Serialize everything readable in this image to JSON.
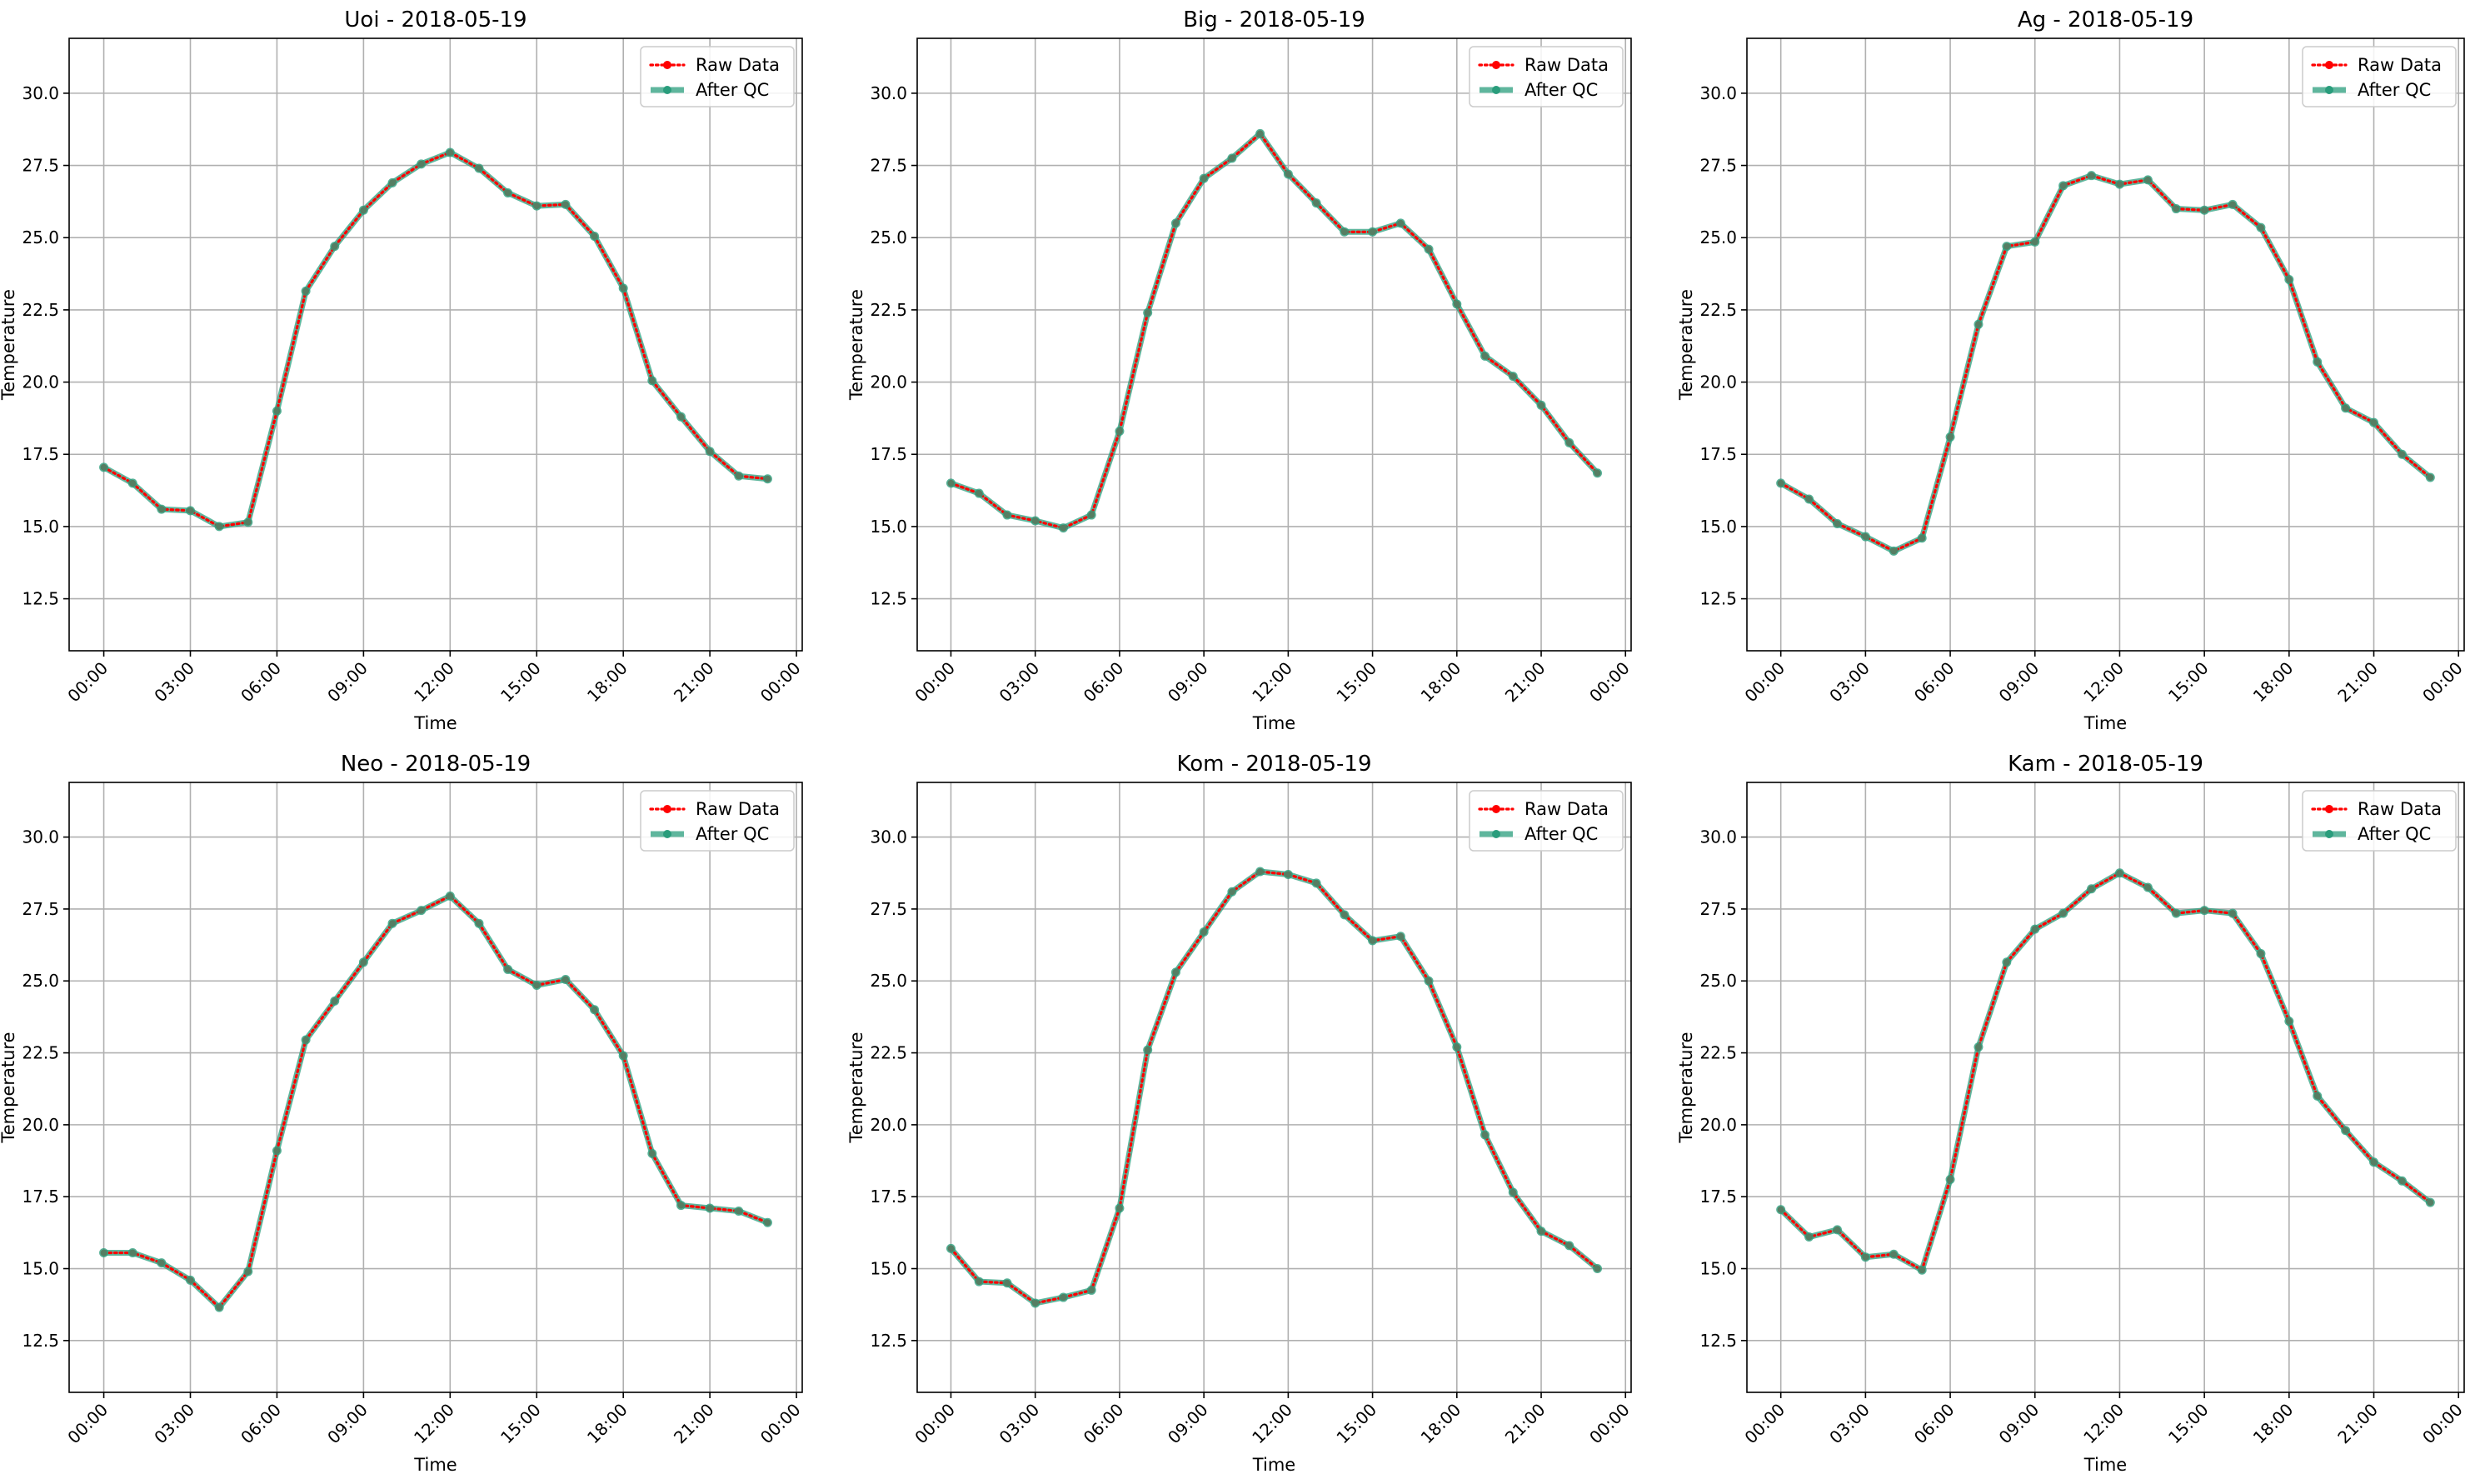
{
  "chart_data": [
    {
      "type": "line",
      "title": "Uoi - 2018-05-19",
      "xlabel": "Time",
      "ylabel": "Temperature",
      "x_ticks": [
        "00:00",
        "03:00",
        "06:00",
        "09:00",
        "12:00",
        "15:00",
        "18:00",
        "21:00",
        "00:00"
      ],
      "y_ticks": [
        "12.5",
        "15.0",
        "17.5",
        "20.0",
        "22.5",
        "25.0",
        "27.5",
        "30.0"
      ],
      "xlim": [
        "2018-05-18 22:48",
        "2018-05-20 00:12"
      ],
      "ylim": [
        10.7,
        31.9
      ],
      "grid": true,
      "legend": "upper right",
      "series": [
        {
          "name": "Raw Data",
          "color": "#ff0000",
          "style": "dotted-markers",
          "x": [
            "00:00",
            "01:00",
            "02:00",
            "03:00",
            "04:00",
            "05:00",
            "06:00",
            "07:00",
            "08:00",
            "09:00",
            "10:00",
            "11:00",
            "12:00",
            "13:00",
            "14:00",
            "15:00",
            "16:00",
            "17:00",
            "18:00",
            "19:00",
            "20:00",
            "21:00",
            "22:00",
            "23:00"
          ],
          "values": [
            17.05,
            16.5,
            15.6,
            15.55,
            15.0,
            15.15,
            19.0,
            23.15,
            24.7,
            25.95,
            26.9,
            27.55,
            27.95,
            27.4,
            26.55,
            26.1,
            26.15,
            25.05,
            23.25,
            20.05,
            18.8,
            17.6,
            16.75,
            16.65
          ]
        },
        {
          "name": "After QC",
          "color": "#2a9d7c",
          "style": "solid-markers",
          "x": [
            "00:00",
            "01:00",
            "02:00",
            "03:00",
            "04:00",
            "05:00",
            "06:00",
            "07:00",
            "08:00",
            "09:00",
            "10:00",
            "11:00",
            "12:00",
            "13:00",
            "14:00",
            "15:00",
            "16:00",
            "17:00",
            "18:00",
            "19:00",
            "20:00",
            "21:00",
            "22:00",
            "23:00"
          ],
          "values": [
            17.05,
            16.5,
            15.6,
            15.55,
            15.0,
            15.15,
            19.0,
            23.15,
            24.7,
            25.95,
            26.9,
            27.55,
            27.95,
            27.4,
            26.55,
            26.1,
            26.15,
            25.05,
            23.25,
            20.05,
            18.8,
            17.6,
            16.75,
            16.65
          ]
        }
      ]
    },
    {
      "type": "line",
      "title": "Big - 2018-05-19",
      "xlabel": "Time",
      "ylabel": "Temperature",
      "x_ticks": [
        "00:00",
        "03:00",
        "06:00",
        "09:00",
        "12:00",
        "15:00",
        "18:00",
        "21:00",
        "00:00"
      ],
      "y_ticks": [
        "12.5",
        "15.0",
        "17.5",
        "20.0",
        "22.5",
        "25.0",
        "27.5",
        "30.0"
      ],
      "xlim": [
        "2018-05-18 22:48",
        "2018-05-20 00:12"
      ],
      "ylim": [
        10.7,
        31.9
      ],
      "grid": true,
      "legend": "upper right",
      "series": [
        {
          "name": "Raw Data",
          "color": "#ff0000",
          "style": "dotted-markers",
          "x": [
            "00:00",
            "01:00",
            "02:00",
            "03:00",
            "04:00",
            "05:00",
            "06:00",
            "07:00",
            "08:00",
            "09:00",
            "10:00",
            "11:00",
            "12:00",
            "13:00",
            "14:00",
            "15:00",
            "16:00",
            "17:00",
            "18:00",
            "19:00",
            "20:00",
            "21:00",
            "22:00",
            "23:00"
          ],
          "values": [
            16.5,
            16.15,
            15.4,
            15.2,
            14.95,
            15.4,
            18.3,
            22.4,
            25.5,
            27.05,
            27.75,
            28.6,
            27.2,
            26.2,
            25.2,
            25.2,
            25.5,
            24.6,
            22.7,
            20.9,
            20.2,
            19.2,
            17.9,
            16.85
          ]
        },
        {
          "name": "After QC",
          "color": "#2a9d7c",
          "style": "solid-markers",
          "x": [
            "00:00",
            "01:00",
            "02:00",
            "03:00",
            "04:00",
            "05:00",
            "06:00",
            "07:00",
            "08:00",
            "09:00",
            "10:00",
            "11:00",
            "12:00",
            "13:00",
            "14:00",
            "15:00",
            "16:00",
            "17:00",
            "18:00",
            "19:00",
            "20:00",
            "21:00",
            "22:00",
            "23:00"
          ],
          "values": [
            16.5,
            16.15,
            15.4,
            15.2,
            14.95,
            15.4,
            18.3,
            22.4,
            25.5,
            27.05,
            27.75,
            28.6,
            27.2,
            26.2,
            25.2,
            25.2,
            25.5,
            24.6,
            22.7,
            20.9,
            20.2,
            19.2,
            17.9,
            16.85
          ]
        }
      ]
    },
    {
      "type": "line",
      "title": "Ag - 2018-05-19",
      "xlabel": "Time",
      "ylabel": "Temperature",
      "x_ticks": [
        "00:00",
        "03:00",
        "06:00",
        "09:00",
        "12:00",
        "15:00",
        "18:00",
        "21:00",
        "00:00"
      ],
      "y_ticks": [
        "12.5",
        "15.0",
        "17.5",
        "20.0",
        "22.5",
        "25.0",
        "27.5",
        "30.0"
      ],
      "xlim": [
        "2018-05-18 22:48",
        "2018-05-20 00:12"
      ],
      "ylim": [
        10.7,
        31.9
      ],
      "grid": true,
      "legend": "upper right",
      "series": [
        {
          "name": "Raw Data",
          "color": "#ff0000",
          "style": "dotted-markers",
          "x": [
            "00:00",
            "01:00",
            "02:00",
            "03:00",
            "04:00",
            "05:00",
            "06:00",
            "07:00",
            "08:00",
            "09:00",
            "10:00",
            "11:00",
            "12:00",
            "13:00",
            "14:00",
            "15:00",
            "16:00",
            "17:00",
            "18:00",
            "19:00",
            "20:00",
            "21:00",
            "22:00",
            "23:00"
          ],
          "values": [
            16.5,
            15.95,
            15.1,
            14.65,
            14.15,
            14.6,
            18.1,
            22.0,
            24.7,
            24.85,
            26.8,
            27.15,
            26.85,
            27.0,
            26.0,
            25.95,
            26.15,
            25.35,
            23.55,
            20.7,
            19.1,
            18.6,
            17.5,
            16.7
          ]
        },
        {
          "name": "After QC",
          "color": "#2a9d7c",
          "style": "solid-markers",
          "x": [
            "00:00",
            "01:00",
            "02:00",
            "03:00",
            "04:00",
            "05:00",
            "06:00",
            "07:00",
            "08:00",
            "09:00",
            "10:00",
            "11:00",
            "12:00",
            "13:00",
            "14:00",
            "15:00",
            "16:00",
            "17:00",
            "18:00",
            "19:00",
            "20:00",
            "21:00",
            "22:00",
            "23:00"
          ],
          "values": [
            16.5,
            15.95,
            15.1,
            14.65,
            14.15,
            14.6,
            18.1,
            22.0,
            24.7,
            24.85,
            26.8,
            27.15,
            26.85,
            27.0,
            26.0,
            25.95,
            26.15,
            25.35,
            23.55,
            20.7,
            19.1,
            18.6,
            17.5,
            16.7
          ]
        }
      ]
    },
    {
      "type": "line",
      "title": "Neo - 2018-05-19",
      "xlabel": "Time",
      "ylabel": "Temperature",
      "x_ticks": [
        "00:00",
        "03:00",
        "06:00",
        "09:00",
        "12:00",
        "15:00",
        "18:00",
        "21:00",
        "00:00"
      ],
      "y_ticks": [
        "12.5",
        "15.0",
        "17.5",
        "20.0",
        "22.5",
        "25.0",
        "27.5",
        "30.0"
      ],
      "xlim": [
        "2018-05-18 22:48",
        "2018-05-20 00:12"
      ],
      "ylim": [
        10.7,
        31.9
      ],
      "grid": true,
      "legend": "upper right",
      "series": [
        {
          "name": "Raw Data",
          "color": "#ff0000",
          "style": "dotted-markers",
          "x": [
            "00:00",
            "01:00",
            "02:00",
            "03:00",
            "04:00",
            "05:00",
            "06:00",
            "07:00",
            "08:00",
            "09:00",
            "10:00",
            "11:00",
            "12:00",
            "13:00",
            "14:00",
            "15:00",
            "16:00",
            "17:00",
            "18:00",
            "19:00",
            "20:00",
            "21:00",
            "22:00",
            "23:00"
          ],
          "values": [
            15.55,
            15.55,
            15.2,
            14.6,
            13.65,
            14.9,
            19.1,
            22.95,
            24.3,
            25.65,
            27.0,
            27.45,
            27.95,
            27.0,
            25.4,
            24.85,
            25.05,
            24.0,
            22.4,
            19.0,
            17.2,
            17.1,
            17.0,
            16.6
          ]
        },
        {
          "name": "After QC",
          "color": "#2a9d7c",
          "style": "solid-markers",
          "x": [
            "00:00",
            "01:00",
            "02:00",
            "03:00",
            "04:00",
            "05:00",
            "06:00",
            "07:00",
            "08:00",
            "09:00",
            "10:00",
            "11:00",
            "12:00",
            "13:00",
            "14:00",
            "15:00",
            "16:00",
            "17:00",
            "18:00",
            "19:00",
            "20:00",
            "21:00",
            "22:00",
            "23:00"
          ],
          "values": [
            15.55,
            15.55,
            15.2,
            14.6,
            13.65,
            14.9,
            19.1,
            22.95,
            24.3,
            25.65,
            27.0,
            27.45,
            27.95,
            27.0,
            25.4,
            24.85,
            25.05,
            24.0,
            22.4,
            19.0,
            17.2,
            17.1,
            17.0,
            16.6
          ]
        }
      ]
    },
    {
      "type": "line",
      "title": "Kom - 2018-05-19",
      "xlabel": "Time",
      "ylabel": "Temperature",
      "x_ticks": [
        "00:00",
        "03:00",
        "06:00",
        "09:00",
        "12:00",
        "15:00",
        "18:00",
        "21:00",
        "00:00"
      ],
      "y_ticks": [
        "12.5",
        "15.0",
        "17.5",
        "20.0",
        "22.5",
        "25.0",
        "27.5",
        "30.0"
      ],
      "xlim": [
        "2018-05-18 22:48",
        "2018-05-20 00:12"
      ],
      "ylim": [
        10.7,
        31.9
      ],
      "grid": true,
      "legend": "upper right",
      "series": [
        {
          "name": "Raw Data",
          "color": "#ff0000",
          "style": "dotted-markers",
          "x": [
            "00:00",
            "01:00",
            "02:00",
            "03:00",
            "04:00",
            "05:00",
            "06:00",
            "07:00",
            "08:00",
            "09:00",
            "10:00",
            "11:00",
            "12:00",
            "13:00",
            "14:00",
            "15:00",
            "16:00",
            "17:00",
            "18:00",
            "19:00",
            "20:00",
            "21:00",
            "22:00",
            "23:00"
          ],
          "values": [
            15.7,
            14.55,
            14.5,
            13.8,
            14.0,
            14.25,
            17.1,
            22.6,
            25.3,
            26.7,
            28.1,
            28.8,
            28.7,
            28.4,
            27.3,
            26.4,
            26.55,
            25.0,
            22.7,
            19.65,
            17.65,
            16.3,
            15.8,
            15.0
          ]
        },
        {
          "name": "After QC",
          "color": "#2a9d7c",
          "style": "solid-markers",
          "x": [
            "00:00",
            "01:00",
            "02:00",
            "03:00",
            "04:00",
            "05:00",
            "06:00",
            "07:00",
            "08:00",
            "09:00",
            "10:00",
            "11:00",
            "12:00",
            "13:00",
            "14:00",
            "15:00",
            "16:00",
            "17:00",
            "18:00",
            "19:00",
            "20:00",
            "21:00",
            "22:00",
            "23:00"
          ],
          "values": [
            15.7,
            14.55,
            14.5,
            13.8,
            14.0,
            14.25,
            17.1,
            22.6,
            25.3,
            26.7,
            28.1,
            28.8,
            28.7,
            28.4,
            27.3,
            26.4,
            26.55,
            25.0,
            22.7,
            19.65,
            17.65,
            16.3,
            15.8,
            15.0
          ]
        }
      ]
    },
    {
      "type": "line",
      "title": "Kam - 2018-05-19",
      "xlabel": "Time",
      "ylabel": "Temperature",
      "x_ticks": [
        "00:00",
        "03:00",
        "06:00",
        "09:00",
        "12:00",
        "15:00",
        "18:00",
        "21:00",
        "00:00"
      ],
      "y_ticks": [
        "12.5",
        "15.0",
        "17.5",
        "20.0",
        "22.5",
        "25.0",
        "27.5",
        "30.0"
      ],
      "xlim": [
        "2018-05-18 22:48",
        "2018-05-20 00:12"
      ],
      "ylim": [
        10.7,
        31.9
      ],
      "grid": true,
      "legend": "upper right",
      "series": [
        {
          "name": "Raw Data",
          "color": "#ff0000",
          "style": "dotted-markers",
          "x": [
            "00:00",
            "01:00",
            "02:00",
            "03:00",
            "04:00",
            "05:00",
            "06:00",
            "07:00",
            "08:00",
            "09:00",
            "10:00",
            "11:00",
            "12:00",
            "13:00",
            "14:00",
            "15:00",
            "16:00",
            "17:00",
            "18:00",
            "19:00",
            "20:00",
            "21:00",
            "22:00",
            "23:00"
          ],
          "values": [
            17.05,
            16.1,
            16.35,
            15.4,
            15.5,
            14.95,
            18.1,
            22.7,
            25.65,
            26.8,
            27.35,
            28.2,
            28.75,
            28.25,
            27.35,
            27.45,
            27.35,
            25.95,
            23.6,
            21.0,
            19.8,
            18.7,
            18.05,
            17.3
          ]
        },
        {
          "name": "After QC",
          "color": "#2a9d7c",
          "style": "solid-markers",
          "x": [
            "00:00",
            "01:00",
            "02:00",
            "03:00",
            "04:00",
            "05:00",
            "06:00",
            "07:00",
            "08:00",
            "09:00",
            "10:00",
            "11:00",
            "12:00",
            "13:00",
            "14:00",
            "15:00",
            "16:00",
            "17:00",
            "18:00",
            "19:00",
            "20:00",
            "21:00",
            "22:00",
            "23:00"
          ],
          "values": [
            17.05,
            16.1,
            16.35,
            15.4,
            15.5,
            14.95,
            18.1,
            22.7,
            25.65,
            26.8,
            27.35,
            28.2,
            28.75,
            28.25,
            27.35,
            27.45,
            27.35,
            25.95,
            23.6,
            21.0,
            19.8,
            18.7,
            18.05,
            17.3
          ]
        }
      ]
    }
  ]
}
